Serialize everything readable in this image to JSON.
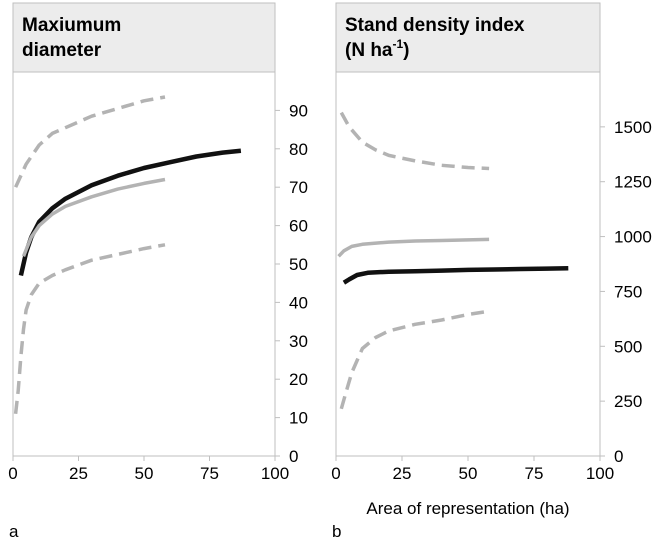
{
  "chart_data": [
    {
      "panel_label": "a",
      "type": "line",
      "title_lines": [
        "Maxiumum",
        "diameter"
      ],
      "title_sup": "",
      "xlabel": "",
      "xlim": [
        0,
        100
      ],
      "ylim": [
        0,
        100
      ],
      "xticks": [
        "0",
        "25",
        "50",
        "75",
        "100"
      ],
      "xtick_values": [
        0,
        25,
        50,
        75,
        100
      ],
      "yticks": [
        "0",
        "10",
        "20",
        "30",
        "40",
        "50",
        "60",
        "70",
        "80",
        "90"
      ],
      "ytick_values": [
        0,
        10,
        20,
        30,
        40,
        50,
        60,
        70,
        80,
        90
      ],
      "y_axis_side": "right",
      "colors": {
        "black": "#111111",
        "gray": "#b3b3b3",
        "dashed": "#b3b3b3",
        "title_bg": "#ececec",
        "axis": "#bfbfbf"
      },
      "series": [
        {
          "style": "dashed",
          "points": [
            [
              1,
              70
            ],
            [
              5,
              76
            ],
            [
              10,
              81
            ],
            [
              15,
              84
            ],
            [
              20,
              85.5
            ],
            [
              30,
              88.5
            ],
            [
              40,
              90.5
            ],
            [
              50,
              92.5
            ],
            [
              58,
              93.5
            ]
          ]
        },
        {
          "style": "black",
          "points": [
            [
              3,
              47
            ],
            [
              4,
              50
            ],
            [
              5,
              53
            ],
            [
              7,
              57
            ],
            [
              10,
              61
            ],
            [
              15,
              64.5
            ],
            [
              20,
              67
            ],
            [
              30,
              70.5
            ],
            [
              40,
              73
            ],
            [
              50,
              75
            ],
            [
              60,
              76.5
            ],
            [
              70,
              78
            ],
            [
              80,
              79
            ],
            [
              87,
              79.5
            ]
          ]
        },
        {
          "style": "gray",
          "points": [
            [
              4,
              52
            ],
            [
              7,
              57
            ],
            [
              10,
              60
            ],
            [
              15,
              63
            ],
            [
              20,
              65
            ],
            [
              30,
              67.5
            ],
            [
              40,
              69.5
            ],
            [
              50,
              71
            ],
            [
              58,
              72
            ]
          ]
        },
        {
          "style": "dashed",
          "points": [
            [
              1,
              11
            ],
            [
              2,
              17
            ],
            [
              3,
              26
            ],
            [
              4,
              33
            ],
            [
              5,
              38
            ],
            [
              7,
              42
            ],
            [
              10,
              45
            ],
            [
              15,
              47
            ],
            [
              20,
              48.5
            ],
            [
              30,
              51
            ],
            [
              40,
              52.5
            ],
            [
              50,
              54
            ],
            [
              58,
              55
            ]
          ]
        }
      ]
    },
    {
      "panel_label": "b",
      "type": "line",
      "title_lines": [
        "Stand density index",
        "(N ha"
      ],
      "title_sup": "-1",
      "title_suffix": ")",
      "xlabel": "Area of representation (ha)",
      "xlim": [
        0,
        100
      ],
      "ylim": [
        0,
        1750
      ],
      "xticks": [
        "0",
        "25",
        "50",
        "75",
        "100"
      ],
      "xtick_values": [
        0,
        25,
        50,
        75,
        100
      ],
      "yticks": [
        "0",
        "250",
        "500",
        "750",
        "1000",
        "1250",
        "1500"
      ],
      "ytick_values": [
        0,
        250,
        500,
        750,
        1000,
        1250,
        1500
      ],
      "y_axis_side": "right",
      "colors": {
        "black": "#111111",
        "gray": "#b3b3b3",
        "dashed": "#b3b3b3",
        "title_bg": "#ececec",
        "axis": "#bfbfbf"
      },
      "series": [
        {
          "style": "dashed",
          "points": [
            [
              2,
              1565
            ],
            [
              5,
              1500
            ],
            [
              10,
              1430
            ],
            [
              15,
              1395
            ],
            [
              20,
              1370
            ],
            [
              30,
              1345
            ],
            [
              40,
              1325
            ],
            [
              50,
              1315
            ],
            [
              58,
              1310
            ]
          ]
        },
        {
          "style": "gray",
          "points": [
            [
              1,
              910
            ],
            [
              3,
              935
            ],
            [
              6,
              955
            ],
            [
              10,
              965
            ],
            [
              20,
              975
            ],
            [
              30,
              980
            ],
            [
              40,
              982
            ],
            [
              50,
              985
            ],
            [
              58,
              987
            ]
          ]
        },
        {
          "style": "black",
          "points": [
            [
              3,
              790
            ],
            [
              5,
              805
            ],
            [
              8,
              825
            ],
            [
              12,
              835
            ],
            [
              20,
              840
            ],
            [
              30,
              842
            ],
            [
              40,
              845
            ],
            [
              50,
              848
            ],
            [
              60,
              850
            ],
            [
              70,
              852
            ],
            [
              80,
              854
            ],
            [
              88,
              856
            ]
          ]
        },
        {
          "style": "dashed",
          "points": [
            [
              2,
              215
            ],
            [
              4,
              300
            ],
            [
              6,
              380
            ],
            [
              8,
              435
            ],
            [
              10,
              490
            ],
            [
              15,
              540
            ],
            [
              20,
              570
            ],
            [
              30,
              600
            ],
            [
              40,
              620
            ],
            [
              50,
              645
            ],
            [
              58,
              660
            ]
          ]
        }
      ]
    }
  ]
}
